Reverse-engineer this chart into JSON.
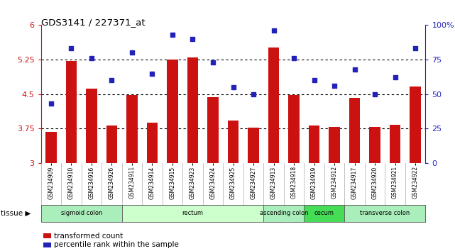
{
  "title": "GDS3141 / 227371_at",
  "samples": [
    "GSM234909",
    "GSM234910",
    "GSM234916",
    "GSM234926",
    "GSM234911",
    "GSM234914",
    "GSM234915",
    "GSM234923",
    "GSM234924",
    "GSM234925",
    "GSM234927",
    "GSM234913",
    "GSM234918",
    "GSM234919",
    "GSM234912",
    "GSM234917",
    "GSM234920",
    "GSM234921",
    "GSM234922"
  ],
  "bar_values": [
    3.68,
    5.22,
    4.62,
    3.82,
    4.48,
    3.88,
    5.25,
    5.3,
    4.44,
    3.92,
    3.77,
    5.52,
    4.48,
    3.82,
    3.78,
    4.42,
    3.78,
    3.84,
    4.66
  ],
  "dot_values": [
    43,
    83,
    76,
    60,
    80,
    65,
    93,
    90,
    73,
    55,
    50,
    96,
    76,
    60,
    56,
    68,
    50,
    62,
    83
  ],
  "ylim_left": [
    3.0,
    6.0
  ],
  "ylim_right": [
    0,
    100
  ],
  "yticks_left": [
    3.0,
    3.75,
    4.5,
    5.25,
    6.0
  ],
  "ytick_labels_left": [
    "3",
    "3.75",
    "4.5",
    "5.25",
    "6"
  ],
  "yticks_right": [
    0,
    25,
    50,
    75,
    100
  ],
  "ytick_labels_right": [
    "0",
    "25",
    "50",
    "75",
    "100%"
  ],
  "hlines": [
    3.75,
    4.5,
    5.25
  ],
  "bar_color": "#cc1111",
  "dot_color": "#2222bb",
  "plot_bg": "#ffffff",
  "tissue_groups": [
    {
      "label": "sigmoid colon",
      "start": 0,
      "end": 4,
      "color": "#aaeebb"
    },
    {
      "label": "rectum",
      "start": 4,
      "end": 11,
      "color": "#ccffcc"
    },
    {
      "label": "ascending colon",
      "start": 11,
      "end": 13,
      "color": "#aaeebb"
    },
    {
      "label": "cecum",
      "start": 13,
      "end": 15,
      "color": "#44dd55"
    },
    {
      "label": "transverse colon",
      "start": 15,
      "end": 19,
      "color": "#aaeebb"
    }
  ]
}
